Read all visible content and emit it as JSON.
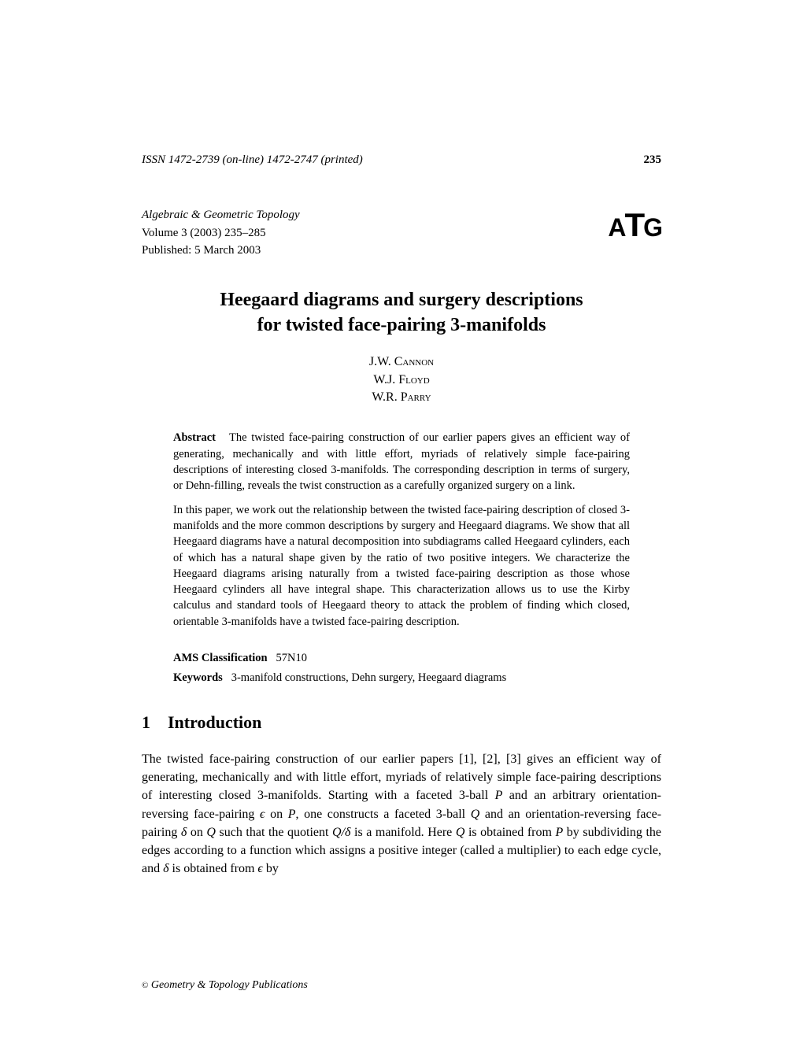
{
  "header": {
    "issn": "ISSN 1472-2739 (on-line) 1472-2747 (printed)",
    "page_number": "235"
  },
  "journal": {
    "name": "Algebraic & Geometric Topology",
    "volume": "Volume 3 (2003) 235–285",
    "published": "Published: 5 March 2003",
    "logo_text": "ATG"
  },
  "title": {
    "line1": "Heegaard diagrams and surgery descriptions",
    "line2": "for twisted face-pairing 3-manifolds"
  },
  "authors": {
    "author1": "J.W. Cannon",
    "author2": "W.J. Floyd",
    "author3": "W.R. Parry"
  },
  "abstract": {
    "label": "Abstract",
    "para1": "The twisted face-pairing construction of our earlier papers gives an efficient way of generating, mechanically and with little effort, myriads of relatively simple face-pairing descriptions of interesting closed 3-manifolds. The corresponding description in terms of surgery, or Dehn-filling, reveals the twist construction as a carefully organized surgery on a link.",
    "para2": "In this paper, we work out the relationship between the twisted face-pairing description of closed 3-manifolds and the more common descriptions by surgery and Heegaard diagrams. We show that all Heegaard diagrams have a natural decomposition into subdiagrams called Heegaard cylinders, each of which has a natural shape given by the ratio of two positive integers. We characterize the Heegaard diagrams arising naturally from a twisted face-pairing description as those whose Heegaard cylinders all have integral shape. This characterization allows us to use the Kirby calculus and standard tools of Heegaard theory to attack the problem of finding which closed, orientable 3-manifolds have a twisted face-pairing description."
  },
  "classification": {
    "label": "AMS Classification",
    "value": "57N10"
  },
  "keywords": {
    "label": "Keywords",
    "value": "3-manifold constructions, Dehn surgery, Heegaard diagrams"
  },
  "section": {
    "number": "1",
    "title": "Introduction"
  },
  "body": {
    "text": "The twisted face-pairing construction of our earlier papers [1], [2], [3] gives an efficient way of generating, mechanically and with little effort, myriads of relatively simple face-pairing descriptions of interesting closed 3-manifolds. Starting with a faceted 3-ball P and an arbitrary orientation-reversing face-pairing ϵ on P, one constructs a faceted 3-ball Q and an orientation-reversing face-pairing δ on Q such that the quotient Q/δ is a manifold. Here Q is obtained from P by subdividing the edges according to a function which assigns a positive integer (called a multiplier) to each edge cycle, and δ is obtained from ϵ by"
  },
  "footer": {
    "copyright": "©",
    "text": "Geometry & Topology Publications"
  },
  "colors": {
    "text": "#000000",
    "background": "#ffffff"
  },
  "typography": {
    "body_fontsize": 16,
    "title_fontsize": 24,
    "section_fontsize": 22,
    "abstract_fontsize": 14.5,
    "header_fontsize": 15,
    "logo_fontsize": 42,
    "font_family": "Times New Roman"
  }
}
